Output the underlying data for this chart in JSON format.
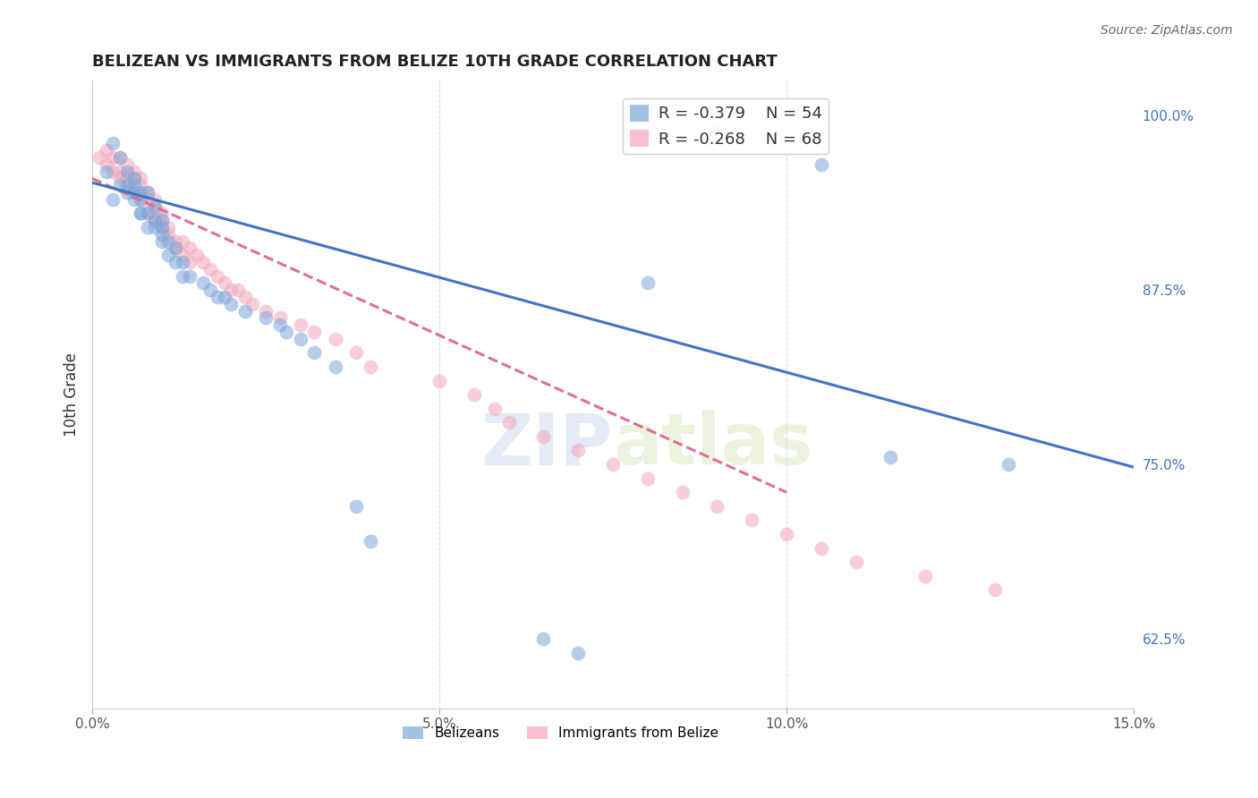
{
  "title": "BELIZEAN VS IMMIGRANTS FROM BELIZE 10TH GRADE CORRELATION CHART",
  "source": "Source: ZipAtlas.com",
  "ylabel": "10th Grade",
  "ytick_labels": [
    "62.5%",
    "75.0%",
    "87.5%",
    "100.0%"
  ],
  "ytick_values": [
    0.625,
    0.75,
    0.875,
    1.0
  ],
  "xlim": [
    0.0,
    0.15
  ],
  "ylim": [
    0.575,
    1.025
  ],
  "legend_r1": "-0.379",
  "legend_n1": "54",
  "legend_r2": "-0.268",
  "legend_n2": "68",
  "blue_color": "#7da7d9",
  "pink_color": "#f4a7b9",
  "blue_line_color": "#4472c4",
  "pink_line_color": "#e07090",
  "watermark_zip": "ZIP",
  "watermark_atlas": "atlas",
  "blue_scatter_x": [
    0.002,
    0.003,
    0.003,
    0.004,
    0.004,
    0.005,
    0.005,
    0.005,
    0.006,
    0.006,
    0.006,
    0.006,
    0.007,
    0.007,
    0.007,
    0.007,
    0.008,
    0.008,
    0.008,
    0.009,
    0.009,
    0.009,
    0.01,
    0.01,
    0.01,
    0.01,
    0.011,
    0.011,
    0.012,
    0.012,
    0.013,
    0.013,
    0.014,
    0.016,
    0.017,
    0.018,
    0.019,
    0.02,
    0.022,
    0.025,
    0.027,
    0.028,
    0.03,
    0.032,
    0.035,
    0.038,
    0.04,
    0.065,
    0.07,
    0.08,
    0.09,
    0.105,
    0.115,
    0.132
  ],
  "blue_scatter_y": [
    0.96,
    0.98,
    0.94,
    0.97,
    0.95,
    0.96,
    0.95,
    0.945,
    0.945,
    0.94,
    0.955,
    0.95,
    0.93,
    0.945,
    0.94,
    0.93,
    0.93,
    0.92,
    0.945,
    0.925,
    0.92,
    0.935,
    0.925,
    0.92,
    0.915,
    0.91,
    0.91,
    0.9,
    0.905,
    0.895,
    0.895,
    0.885,
    0.885,
    0.88,
    0.875,
    0.87,
    0.87,
    0.865,
    0.86,
    0.855,
    0.85,
    0.845,
    0.84,
    0.83,
    0.82,
    0.72,
    0.695,
    0.625,
    0.615,
    0.88,
    0.99,
    0.965,
    0.755,
    0.75
  ],
  "pink_scatter_x": [
    0.001,
    0.002,
    0.002,
    0.003,
    0.003,
    0.004,
    0.004,
    0.004,
    0.005,
    0.005,
    0.005,
    0.006,
    0.006,
    0.006,
    0.007,
    0.007,
    0.007,
    0.007,
    0.008,
    0.008,
    0.008,
    0.009,
    0.009,
    0.009,
    0.009,
    0.01,
    0.01,
    0.01,
    0.011,
    0.011,
    0.012,
    0.012,
    0.013,
    0.013,
    0.014,
    0.014,
    0.015,
    0.016,
    0.017,
    0.018,
    0.019,
    0.02,
    0.021,
    0.022,
    0.023,
    0.025,
    0.027,
    0.03,
    0.032,
    0.035,
    0.038,
    0.04,
    0.05,
    0.055,
    0.058,
    0.06,
    0.065,
    0.07,
    0.075,
    0.08,
    0.085,
    0.09,
    0.095,
    0.1,
    0.105,
    0.11,
    0.12,
    0.13
  ],
  "pink_scatter_y": [
    0.97,
    0.975,
    0.965,
    0.97,
    0.96,
    0.97,
    0.96,
    0.955,
    0.965,
    0.955,
    0.95,
    0.96,
    0.955,
    0.945,
    0.955,
    0.95,
    0.945,
    0.94,
    0.945,
    0.94,
    0.93,
    0.94,
    0.935,
    0.93,
    0.925,
    0.93,
    0.925,
    0.92,
    0.92,
    0.915,
    0.91,
    0.905,
    0.91,
    0.9,
    0.905,
    0.895,
    0.9,
    0.895,
    0.89,
    0.885,
    0.88,
    0.875,
    0.875,
    0.87,
    0.865,
    0.86,
    0.855,
    0.85,
    0.845,
    0.84,
    0.83,
    0.82,
    0.81,
    0.8,
    0.79,
    0.78,
    0.77,
    0.76,
    0.75,
    0.74,
    0.73,
    0.72,
    0.71,
    0.7,
    0.69,
    0.68,
    0.67,
    0.66
  ],
  "blue_line_x": [
    0.0,
    0.15
  ],
  "blue_line_y": [
    0.952,
    0.748
  ],
  "pink_line_x": [
    0.0,
    0.1
  ],
  "pink_line_y": [
    0.955,
    0.73
  ]
}
